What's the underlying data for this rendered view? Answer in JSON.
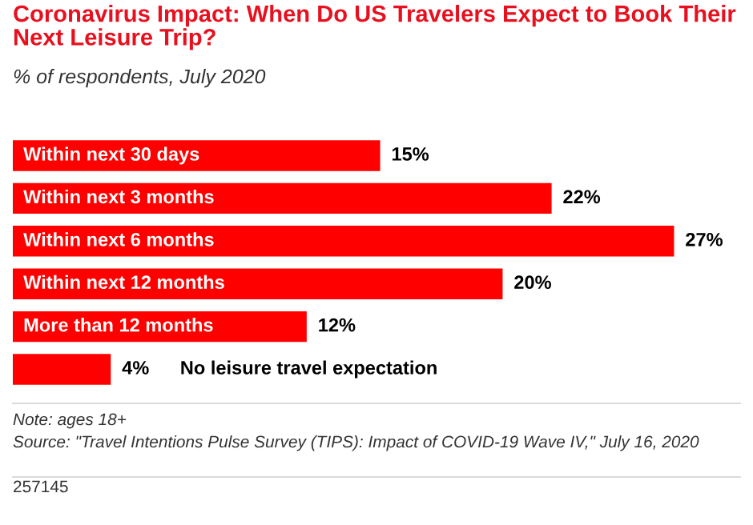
{
  "chart_data": {
    "type": "bar",
    "orientation": "horizontal",
    "title": "Coronavirus Impact: When Do US Travelers Expect to Book Their Next Leisure Trip?",
    "subtitle": "% of respondents, July 2020",
    "categories": [
      "Within next 30 days",
      "Within next 3 months",
      "Within next 6 months",
      "Within next 12 months",
      "More than 12 months",
      "No leisure travel expectation"
    ],
    "values": [
      15,
      22,
      27,
      20,
      12,
      4
    ],
    "value_labels": [
      "15%",
      "22%",
      "27%",
      "20%",
      "12%",
      "4%"
    ],
    "color": "#ff0000",
    "annotations": [
      "Note: ages 18+",
      "Source: \"Travel Intentions Pulse Survey (TIPS): Impact of COVID-19 Wave IV,\" July 16, 2020",
      "257145"
    ]
  }
}
